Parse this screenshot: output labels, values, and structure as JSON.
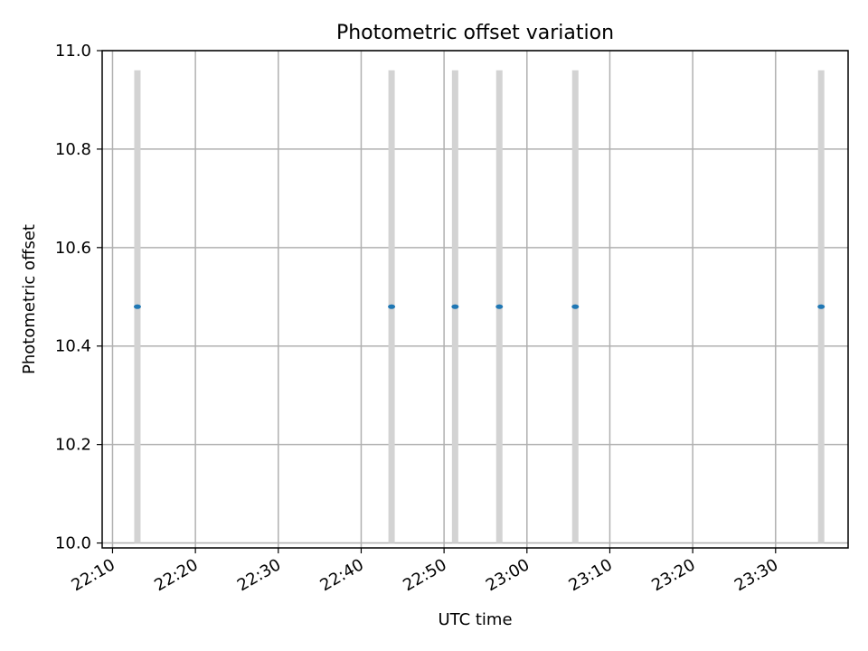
{
  "chart_data": {
    "type": "scatter",
    "title": "Photometric offset variation",
    "xlabel": "UTC time",
    "ylabel": "Photometric offset",
    "x_kind": "time-of-day",
    "xlim": [
      "22:08:45",
      "23:38:45"
    ],
    "ylim": [
      9.99,
      11.0
    ],
    "x_ticks": [
      "22:10",
      "22:20",
      "22:30",
      "22:40",
      "22:50",
      "23:00",
      "23:10",
      "23:20",
      "23:30"
    ],
    "y_ticks": [
      "10.0",
      "10.2",
      "10.4",
      "10.6",
      "10.8",
      "11.0"
    ],
    "grid": true,
    "series": [
      {
        "color": "#1f77b4",
        "error_bar_color": "#d3d3d3",
        "points": [
          {
            "x": "22:13:00",
            "y": 10.48,
            "y_low": 10.0,
            "y_high": 10.96
          },
          {
            "x": "22:43:40",
            "y": 10.48,
            "y_low": 10.0,
            "y_high": 10.96
          },
          {
            "x": "22:51:20",
            "y": 10.48,
            "y_low": 10.0,
            "y_high": 10.96
          },
          {
            "x": "22:56:40",
            "y": 10.48,
            "y_low": 10.0,
            "y_high": 10.96
          },
          {
            "x": "23:05:50",
            "y": 10.48,
            "y_low": 10.0,
            "y_high": 10.96
          },
          {
            "x": "23:35:30",
            "y": 10.48,
            "y_low": 10.0,
            "y_high": 10.96
          }
        ]
      }
    ]
  }
}
